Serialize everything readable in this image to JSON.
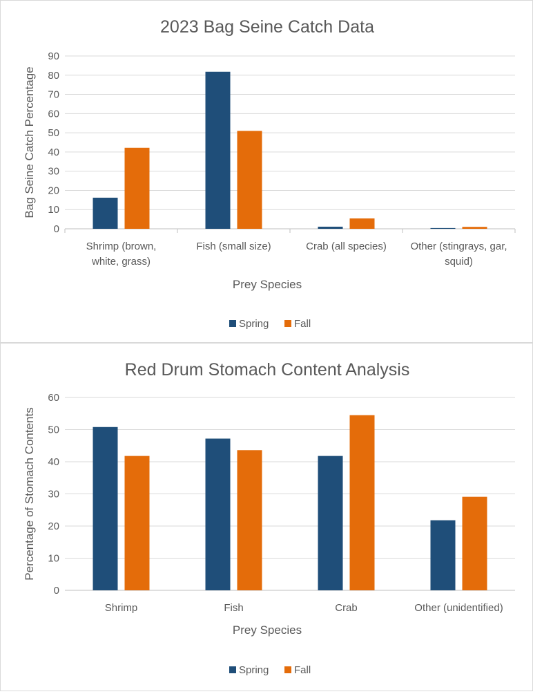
{
  "chart_data": [
    {
      "type": "bar",
      "title": "2023 Bag Seine Catch Data",
      "xlabel": "Prey Species",
      "ylabel": "Bag Seine Catch Percentage",
      "categories": [
        [
          "Shrimp (brown,",
          "white, grass)"
        ],
        [
          "Fish (small size)"
        ],
        [
          "Crab (all species)"
        ],
        [
          "Other (stingrays, gar,",
          "squid)"
        ]
      ],
      "series": [
        {
          "name": "Spring",
          "color": "#1f4e79",
          "values": [
            16.2,
            81.8,
            1.1,
            0.4
          ]
        },
        {
          "name": "Fall",
          "color": "#e46c0a",
          "values": [
            42.2,
            51.0,
            5.4,
            1.0
          ]
        }
      ],
      "ylim": [
        0,
        90
      ],
      "yticks": [
        0,
        10,
        20,
        30,
        40,
        50,
        60,
        70,
        80,
        90
      ],
      "grid": true,
      "legend": "bottom"
    },
    {
      "type": "bar",
      "title": "Red Drum Stomach Content Analysis",
      "xlabel": "Prey Species",
      "ylabel": "Percentage of Stomach Contents",
      "categories": [
        [
          "Shrimp"
        ],
        [
          "Fish"
        ],
        [
          "Crab"
        ],
        [
          "Other (unidentified)"
        ]
      ],
      "series": [
        {
          "name": "Spring",
          "color": "#1f4e79",
          "values": [
            50.8,
            47.2,
            41.8,
            21.8
          ]
        },
        {
          "name": "Fall",
          "color": "#e46c0a",
          "values": [
            41.8,
            43.6,
            54.5,
            29.1
          ]
        }
      ],
      "ylim": [
        0,
        60
      ],
      "yticks": [
        0,
        10,
        20,
        30,
        40,
        50,
        60
      ],
      "grid": true,
      "legend": "bottom"
    }
  ]
}
